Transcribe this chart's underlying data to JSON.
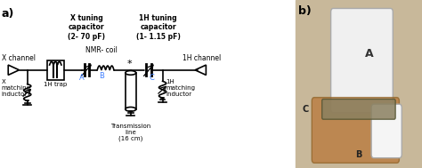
{
  "fig_width": 4.74,
  "fig_height": 1.89,
  "dpi": 100,
  "bg_color": "#ffffff",
  "label_a": "a)",
  "label_b": "b)",
  "title_x_tuning": "X tuning\ncapacitor\n(2- 70 pF)",
  "title_1h_tuning": "1H tuning\ncapacitor\n(1- 1.15 pF)",
  "label_x_channel": "X channel",
  "label_1h_trap": "1H trap",
  "label_nmr_coil": "NMR- coil",
  "label_transmission": "Transmission\nline\n(16 cm)",
  "label_1h_channel": "1H channel",
  "label_x_matching": "X\nmatching\ninductor",
  "label_1h_matching": "1H\nmatching\ninductor",
  "node_a": "A",
  "node_b": "B",
  "node_c": "C",
  "star": "*",
  "circuit_color": "#000000",
  "blue_color": "#4080ff",
  "photo_label_a": "A",
  "photo_label_c": "C",
  "photo_label_b": "B"
}
